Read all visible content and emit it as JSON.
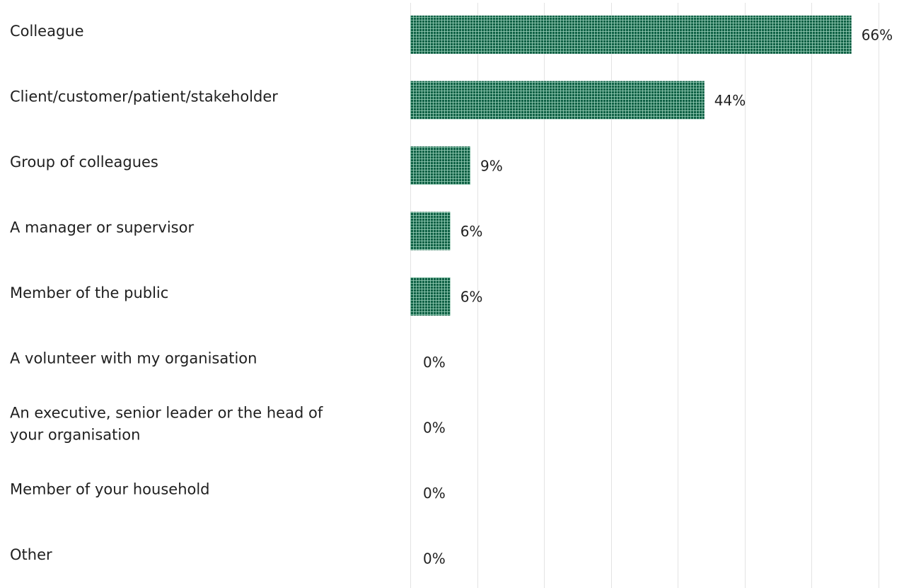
{
  "chart_data": {
    "type": "bar",
    "orientation": "horizontal",
    "categories": [
      "Colleague",
      "Client/customer/patient/stakeholder",
      "Group of colleagues",
      "A manager or supervisor",
      "Member of the public",
      "A volunteer with my organisation",
      "An executive, senior leader or the head of your organisation",
      "Member of your household",
      "Other"
    ],
    "category_lines": [
      [
        "Colleague"
      ],
      [
        "Client/customer/patient/stakeholder"
      ],
      [
        "Group of colleagues"
      ],
      [
        "A manager or supervisor"
      ],
      [
        "Member of the public"
      ],
      [
        "A volunteer with my organisation"
      ],
      [
        "An executive, senior leader or the head of",
        "your organisation"
      ],
      [
        "Member of your household"
      ],
      [
        "Other"
      ]
    ],
    "values": [
      66,
      44,
      9,
      6,
      6,
      0,
      0,
      0,
      0
    ],
    "value_labels": [
      "66%",
      "44%",
      "9%",
      "6%",
      "6%",
      "0%",
      "0%",
      "0%",
      "0%"
    ],
    "xlim": [
      0,
      70
    ],
    "grid": true,
    "legend": "none",
    "bar_color": "#0f6145",
    "bar_pattern_color": "#9fd3bd",
    "title": "",
    "xlabel": "",
    "ylabel": ""
  }
}
